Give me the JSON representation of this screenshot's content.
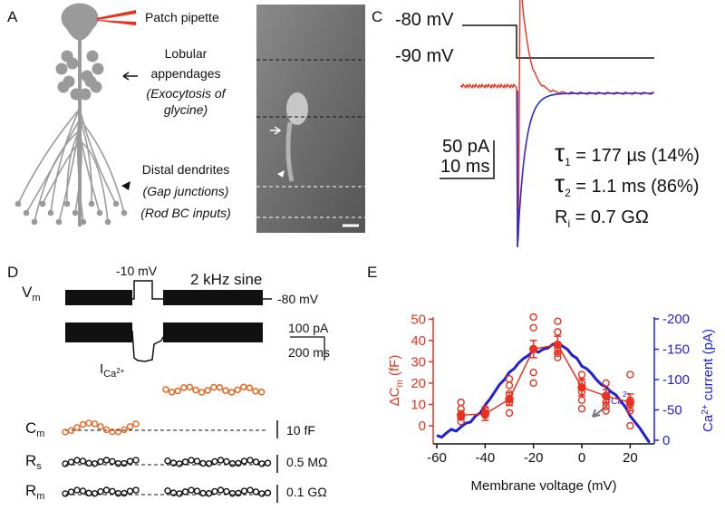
{
  "panel_a": {
    "label": "A",
    "pipette": "Patch pipette",
    "lobular_1": "Lobular",
    "lobular_2": "appendages",
    "lobular_3": "(Exocytosis of",
    "lobular_4": "glycine)",
    "distal_1": "Distal dendrites",
    "distal_2": "(Gap junctions)",
    "distal_3": "(Rod BC inputs)"
  },
  "panel_c": {
    "label": "C",
    "hold": "-80 mV",
    "step": "-90 mV",
    "scale_current": "50 pA",
    "scale_time": "10 ms",
    "fits": [
      {
        "symbol": "τ",
        "sub": "1",
        "text": " = 177 µs  (14%)"
      },
      {
        "symbol": "τ",
        "sub": "2",
        "text": " = 1.1 ms  (86%)"
      },
      {
        "symbol": "R",
        "sub": "i",
        "text": " = 0.7 GΩ"
      }
    ]
  },
  "panel_d": {
    "label": "D",
    "vm_symbol": "V",
    "vm_sub": "m",
    "step": "-10 mV",
    "sine": "2 kHz sine",
    "hold": "-80 mV",
    "scale_current": "100 pA",
    "scale_time": "200 ms",
    "ica_symbol": "I",
    "ica_sub": "Ca",
    "ica_sup": "2+",
    "rows": [
      {
        "symbol": "C",
        "sub": "m",
        "scale": "10 fF"
      },
      {
        "symbol": "R",
        "sub": "s",
        "scale": "0.5 MΩ"
      },
      {
        "symbol": "R",
        "sub": "m",
        "scale": "0.1 GΩ"
      }
    ]
  },
  "chart_data": {
    "type": "line",
    "label": "E",
    "xlabel": "Membrane voltage (mV)",
    "ylabel_main": "ΔC",
    "ylabel_sub": "m",
    "ylabel_unit": " (fF)",
    "y2label_main": "Ca",
    "y2label_sup": "2+",
    "y2label_unit": " current (pA)",
    "annotation_main": "I",
    "annotation_sub": "Ca",
    "annotation_sup": "2+",
    "xlim": [
      -60,
      30
    ],
    "xticks": [
      -60,
      -40,
      -20,
      0,
      20
    ],
    "ylim": [
      -8.5,
      51
    ],
    "yticks": [
      0,
      10,
      20,
      30,
      40,
      50
    ],
    "y2lim": [
      6,
      -203
    ],
    "y2ticks": [
      0,
      -50,
      -100,
      -150,
      -200
    ],
    "ycolor": "#e8321e",
    "y2color": "#1f1fd6",
    "series": [
      {
        "style": "markers",
        "color": "#e8321e",
        "x": [
          -50,
          -50,
          -50,
          -50,
          -40,
          -40,
          -40,
          -30,
          -30,
          -30,
          -30,
          -30,
          -20,
          -20,
          -20,
          -20,
          -20,
          -10,
          -10,
          -10,
          -10,
          -10,
          0,
          0,
          0,
          0,
          0,
          10,
          10,
          10,
          10,
          20,
          20,
          20,
          20,
          20
        ],
        "values": [
          11,
          8,
          4,
          2,
          8,
          6,
          5,
          22,
          19,
          15,
          11,
          6,
          51,
          46,
          36,
          25,
          20,
          49,
          44,
          36,
          34,
          32,
          24,
          20,
          16,
          12,
          8,
          20,
          11,
          9,
          7,
          24,
          12,
          10,
          7,
          0
        ]
      },
      {
        "style": "line+markers",
        "color": "#e8321e",
        "x": [
          -50,
          -40,
          -30,
          -20,
          -10,
          0,
          10,
          20
        ],
        "values": [
          5,
          5.5,
          12.5,
          36,
          38,
          18,
          14,
          11
        ],
        "errors": [
          2,
          3,
          3,
          4,
          4,
          4,
          3,
          4
        ]
      },
      {
        "style": "line",
        "color": "#1f1fd6",
        "axis": "y2",
        "x": [
          -60,
          -58,
          -56,
          -54,
          -52,
          -50,
          -48,
          -46,
          -44,
          -42,
          -40,
          -38,
          -36,
          -34,
          -32,
          -30,
          -28,
          -26,
          -24,
          -22,
          -20,
          -18,
          -16,
          -14,
          -12,
          -10,
          -8,
          -6,
          -4,
          -2,
          0,
          2,
          4,
          6,
          8,
          10,
          12,
          14,
          16,
          18,
          20,
          22,
          24,
          26,
          28
        ],
        "values": [
          -8,
          -5,
          -12,
          -18,
          -15,
          -22,
          -28,
          -30,
          -40,
          -45,
          -58,
          -68,
          -80,
          -92,
          -100,
          -112,
          -118,
          -128,
          -135,
          -140,
          -148,
          -145,
          -150,
          -152,
          -158,
          -162,
          -155,
          -150,
          -140,
          -135,
          -122,
          -118,
          -110,
          -100,
          -92,
          -88,
          -80,
          -75,
          -65,
          -55,
          -40,
          -30,
          -20,
          -8,
          4
        ]
      }
    ]
  }
}
